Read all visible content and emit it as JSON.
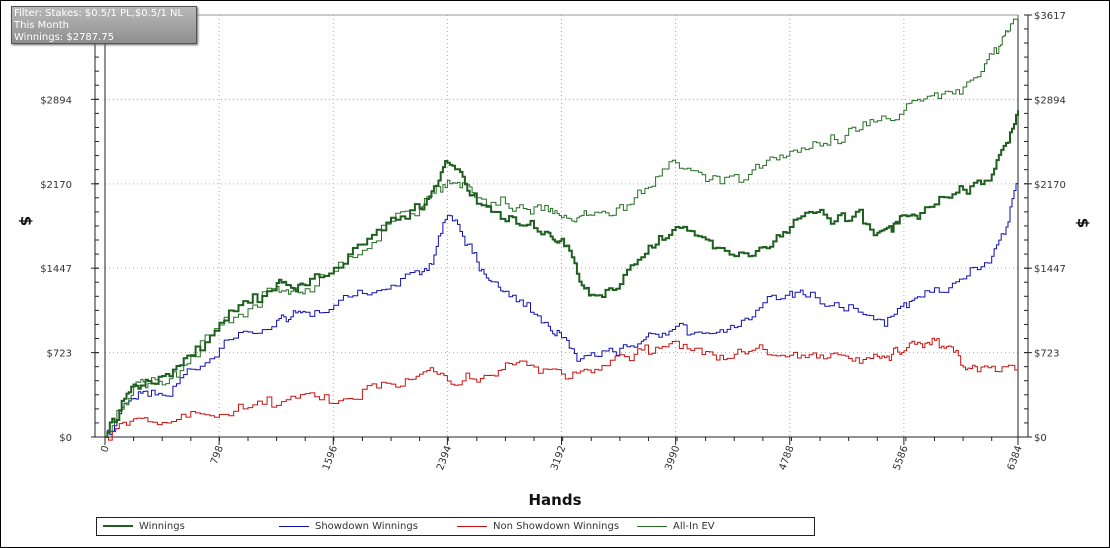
{
  "filter_box": {
    "line1": "Filter: Stakes: $0.5/1 PL,$0.5/1 NL",
    "line2": "This Month",
    "line3": "Winnings: $2787.75"
  },
  "chart_data": {
    "type": "line",
    "xlabel": "Hands",
    "ylabel_left": "$",
    "ylabel_right": "$",
    "xlim": [
      0,
      6384
    ],
    "ylim": [
      0,
      3617
    ],
    "x_ticks": [
      "0",
      "798",
      "1596",
      "2394",
      "3192",
      "3990",
      "4788",
      "5586",
      "6384"
    ],
    "y_ticks_left": [
      "$0",
      "$723",
      "$1447",
      "$2170",
      "$2894"
    ],
    "y_ticks_right": [
      "$0",
      "$723",
      "$1447",
      "$2170",
      "$2894",
      "$3617"
    ],
    "grid": true,
    "legend_position": "bottom",
    "series": [
      {
        "name": "Winnings",
        "color": "#1e5e1e",
        "x": [
          0,
          100,
          200,
          300,
          450,
          600,
          800,
          1000,
          1200,
          1300,
          1400,
          1600,
          1800,
          2000,
          2200,
          2300,
          2394,
          2500,
          2600,
          2800,
          2950,
          3100,
          3192,
          3300,
          3400,
          3550,
          3700,
          3850,
          3990,
          4150,
          4300,
          4500,
          4650,
          4788,
          4950,
          5100,
          5250,
          5400,
          5500,
          5586,
          5700,
          5900,
          6050,
          6200,
          6300,
          6384
        ],
        "y": [
          0,
          230,
          450,
          480,
          520,
          700,
          980,
          1150,
          1320,
          1280,
          1300,
          1450,
          1650,
          1880,
          1960,
          2150,
          2350,
          2230,
          2000,
          1850,
          1820,
          1750,
          1700,
          1400,
          1220,
          1260,
          1480,
          1650,
          1800,
          1720,
          1620,
          1550,
          1630,
          1800,
          1920,
          1850,
          1930,
          1750,
          1760,
          1900,
          1920,
          2050,
          2150,
          2250,
          2520,
          2800
        ]
      },
      {
        "name": "Showdown Winnings",
        "color": "#1010b0",
        "x": [
          0,
          100,
          200,
          300,
          450,
          600,
          800,
          1000,
          1200,
          1300,
          1400,
          1600,
          1800,
          2000,
          2200,
          2300,
          2394,
          2500,
          2600,
          2700,
          2800,
          2950,
          3100,
          3192,
          3300,
          3450,
          3600,
          3750,
          3850,
          3990,
          4150,
          4300,
          4450,
          4600,
          4788,
          4900,
          5100,
          5300,
          5450,
          5586,
          5700,
          5900,
          6050,
          6200,
          6300,
          6384
        ],
        "y": [
          0,
          200,
          330,
          350,
          350,
          580,
          760,
          900,
          1000,
          1030,
          1070,
          1130,
          1230,
          1300,
          1390,
          1560,
          1900,
          1720,
          1500,
          1330,
          1250,
          1150,
          950,
          850,
          650,
          690,
          760,
          820,
          880,
          950,
          900,
          920,
          1000,
          1150,
          1250,
          1200,
          1150,
          1050,
          950,
          1150,
          1200,
          1280,
          1450,
          1550,
          1800,
          2200
        ]
      },
      {
        "name": "Non Showdown Winnings",
        "color": "#cc1010",
        "x": [
          0,
          150,
          300,
          500,
          700,
          900,
          1100,
          1300,
          1500,
          1700,
          1900,
          2100,
          2250,
          2394,
          2550,
          2700,
          2850,
          3000,
          3192,
          3350,
          3500,
          3700,
          3850,
          3990,
          4150,
          4300,
          4450,
          4600,
          4788,
          4950,
          5100,
          5250,
          5400,
          5500,
          5586,
          5700,
          5800,
          5900,
          6000,
          6100,
          6250,
          6384
        ],
        "y": [
          0,
          100,
          130,
          150,
          190,
          220,
          280,
          350,
          320,
          330,
          420,
          500,
          570,
          480,
          500,
          530,
          620,
          600,
          540,
          580,
          610,
          710,
          770,
          820,
          760,
          700,
          730,
          750,
          700,
          720,
          720,
          680,
          690,
          710,
          740,
          800,
          830,
          780,
          600,
          560,
          560,
          570
        ]
      },
      {
        "name": "All-In EV",
        "color": "#246e24",
        "x": [
          0,
          100,
          200,
          300,
          450,
          600,
          800,
          1000,
          1200,
          1300,
          1400,
          1600,
          1800,
          2000,
          2200,
          2300,
          2394,
          2500,
          2600,
          2800,
          2950,
          3100,
          3192,
          3300,
          3400,
          3550,
          3700,
          3850,
          3990,
          4150,
          4300,
          4500,
          4650,
          4788,
          4950,
          5100,
          5250,
          5400,
          5586,
          5700,
          5850,
          6000,
          6150,
          6250,
          6320,
          6384
        ],
        "y": [
          0,
          220,
          430,
          460,
          500,
          690,
          960,
          1100,
          1290,
          1250,
          1270,
          1420,
          1600,
          1850,
          1950,
          2090,
          2200,
          2180,
          2050,
          2000,
          1950,
          1930,
          1880,
          1880,
          1900,
          1900,
          2050,
          2230,
          2350,
          2270,
          2170,
          2250,
          2400,
          2450,
          2530,
          2550,
          2620,
          2710,
          2800,
          2880,
          2940,
          3000,
          3200,
          3350,
          3480,
          3617
        ]
      }
    ]
  }
}
